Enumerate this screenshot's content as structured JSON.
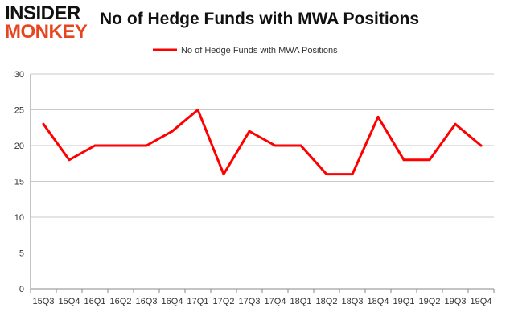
{
  "logo": {
    "line1": "INSIDER",
    "line2": "MONKEY"
  },
  "colors": {
    "series": "#ff0000",
    "grid": "#c8c8c8",
    "axis": "#888888",
    "logo_accent": "#e8451f"
  },
  "chart_data": {
    "type": "line",
    "title": "No of Hedge Funds with MWA Positions",
    "xlabel": "",
    "ylabel": "",
    "ylim": [
      0,
      30
    ],
    "yticks": [
      0,
      5,
      10,
      15,
      20,
      25,
      30
    ],
    "grid": true,
    "legend_position": "top-center",
    "categories": [
      "15Q3",
      "15Q4",
      "16Q1",
      "16Q2",
      "16Q3",
      "16Q4",
      "17Q1",
      "17Q2",
      "17Q3",
      "17Q4",
      "18Q1",
      "18Q2",
      "18Q3",
      "18Q4",
      "19Q1",
      "19Q2",
      "19Q3",
      "19Q4"
    ],
    "series": [
      {
        "name": "No of Hedge Funds with MWA Positions",
        "values": [
          23,
          18,
          20,
          20,
          20,
          22,
          25,
          16,
          22,
          20,
          20,
          16,
          16,
          24,
          18,
          18,
          23,
          20
        ]
      }
    ]
  }
}
